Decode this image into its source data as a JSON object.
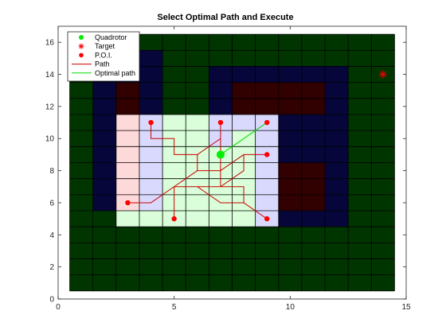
{
  "chart_data": {
    "type": "scatter",
    "title": "Select Optimal Path and Execute",
    "xlabel": "",
    "ylabel": "",
    "xlim": [
      0,
      15
    ],
    "ylim": [
      0,
      17
    ],
    "xticks": [
      0,
      5,
      10,
      15
    ],
    "yticks": [
      0,
      2,
      4,
      6,
      8,
      10,
      12,
      14,
      16
    ],
    "grid": {
      "cell_size": 1,
      "x_range": [
        0.5,
        14.5
      ],
      "y_range": [
        0.5,
        16.5
      ],
      "base_color": "#013500",
      "cells": [
        {
          "x": [
            1.5,
            2.5
          ],
          "y": [
            5.5,
            14.5
          ],
          "color": "#06063a"
        },
        {
          "x": [
            2.5,
            3.5
          ],
          "y": [
            11.5,
            14.5
          ],
          "color": "#06063a"
        },
        {
          "x": [
            3.5,
            4.5
          ],
          "y": [
            11.5,
            15.5
          ],
          "color": "#06063a"
        },
        {
          "x": [
            2.5,
            3.5
          ],
          "y": [
            11.5,
            13.5
          ],
          "color": "#310000"
        },
        {
          "x": [
            6.5,
            12.5
          ],
          "y": [
            11.5,
            14.5
          ],
          "color": "#06063a"
        },
        {
          "x": [
            7.5,
            11.5
          ],
          "y": [
            11.5,
            13.5
          ],
          "color": "#310000"
        },
        {
          "x": [
            9.5,
            12.5
          ],
          "y": [
            8.5,
            11.5
          ],
          "color": "#06063a"
        },
        {
          "x": [
            9.5,
            12.5
          ],
          "y": [
            4.5,
            8.5
          ],
          "color": "#06063a"
        },
        {
          "x": [
            9.5,
            11.5
          ],
          "y": [
            5.5,
            8.5
          ],
          "color": "#310000"
        },
        {
          "x": [
            2.5,
            3.5
          ],
          "y": [
            5.5,
            11.5
          ],
          "color": "#fed9d9"
        },
        {
          "x": [
            2.5,
            3.5
          ],
          "y": [
            4.5,
            5.5
          ],
          "color": "#d9fed9"
        },
        {
          "x": [
            3.5,
            4.5
          ],
          "y": [
            4.5,
            11.5
          ],
          "color": "#d9d9fe"
        },
        {
          "x": [
            3.5,
            4.5
          ],
          "y": [
            4.5,
            5.5
          ],
          "color": "#d9fed9"
        },
        {
          "x": [
            4.5,
            9.5
          ],
          "y": [
            4.5,
            11.5
          ],
          "color": "#d9fed9"
        },
        {
          "x": [
            6.5,
            9.5
          ],
          "y": [
            9.5,
            11.5
          ],
          "color": "#d9d9fe"
        },
        {
          "x": [
            7.5,
            8.5
          ],
          "y": [
            9.5,
            10.5
          ],
          "color": "#d9fed9"
        },
        {
          "x": [
            8.5,
            9.5
          ],
          "y": [
            4.5,
            9.5
          ],
          "color": "#d9d9fe"
        }
      ]
    },
    "series": [
      {
        "name": "Quadrotor",
        "marker": "circle",
        "color": "#00ee00",
        "points": [
          [
            7,
            9
          ]
        ]
      },
      {
        "name": "Target",
        "marker": "asterisk",
        "color": "#ff0000",
        "points": [
          [
            14,
            14
          ]
        ]
      },
      {
        "name": "P.O.I.",
        "marker": "dot",
        "color": "#ff0000",
        "points": [
          [
            4,
            11
          ],
          [
            7,
            11
          ],
          [
            9,
            11
          ],
          [
            9,
            9
          ],
          [
            3,
            6
          ],
          [
            5,
            5
          ],
          [
            9,
            5
          ]
        ]
      },
      {
        "name": "Path",
        "style": "line",
        "color": "#cc0000",
        "points": [
          [
            4,
            11
          ],
          [
            4,
            10
          ],
          [
            5,
            10
          ],
          [
            5,
            9
          ],
          [
            6,
            9
          ],
          [
            6,
            8
          ],
          [
            7,
            8
          ],
          [
            7,
            7
          ],
          [
            8,
            7
          ],
          [
            8,
            6
          ],
          [
            9,
            5
          ],
          [
            9,
            5
          ],
          [
            8,
            6
          ],
          [
            7,
            6
          ],
          [
            6,
            7
          ],
          [
            5,
            7
          ],
          [
            4,
            6
          ],
          [
            3,
            6
          ],
          [
            3,
            6
          ],
          [
            4,
            6
          ],
          [
            5,
            7
          ],
          [
            6,
            7
          ],
          [
            7,
            7
          ],
          [
            8,
            8
          ],
          [
            8,
            9
          ],
          [
            9,
            9
          ],
          [
            9,
            9
          ],
          [
            8,
            9
          ],
          [
            7,
            8
          ],
          [
            7,
            9
          ],
          [
            7,
            10
          ],
          [
            7,
            11
          ],
          [
            7,
            11
          ],
          [
            7,
            10
          ],
          [
            6,
            9
          ],
          [
            6,
            8
          ],
          [
            5,
            7
          ],
          [
            5,
            6
          ],
          [
            5,
            5
          ]
        ]
      },
      {
        "name": "Optimal path",
        "style": "line",
        "color": "#00dd00",
        "points": [
          [
            7,
            9
          ],
          [
            9,
            11
          ]
        ]
      }
    ],
    "legend": {
      "placement": "top-left",
      "entries": [
        "Quadrotor",
        "Target",
        "P.O.I.",
        "Path",
        "Optimal path"
      ]
    }
  }
}
